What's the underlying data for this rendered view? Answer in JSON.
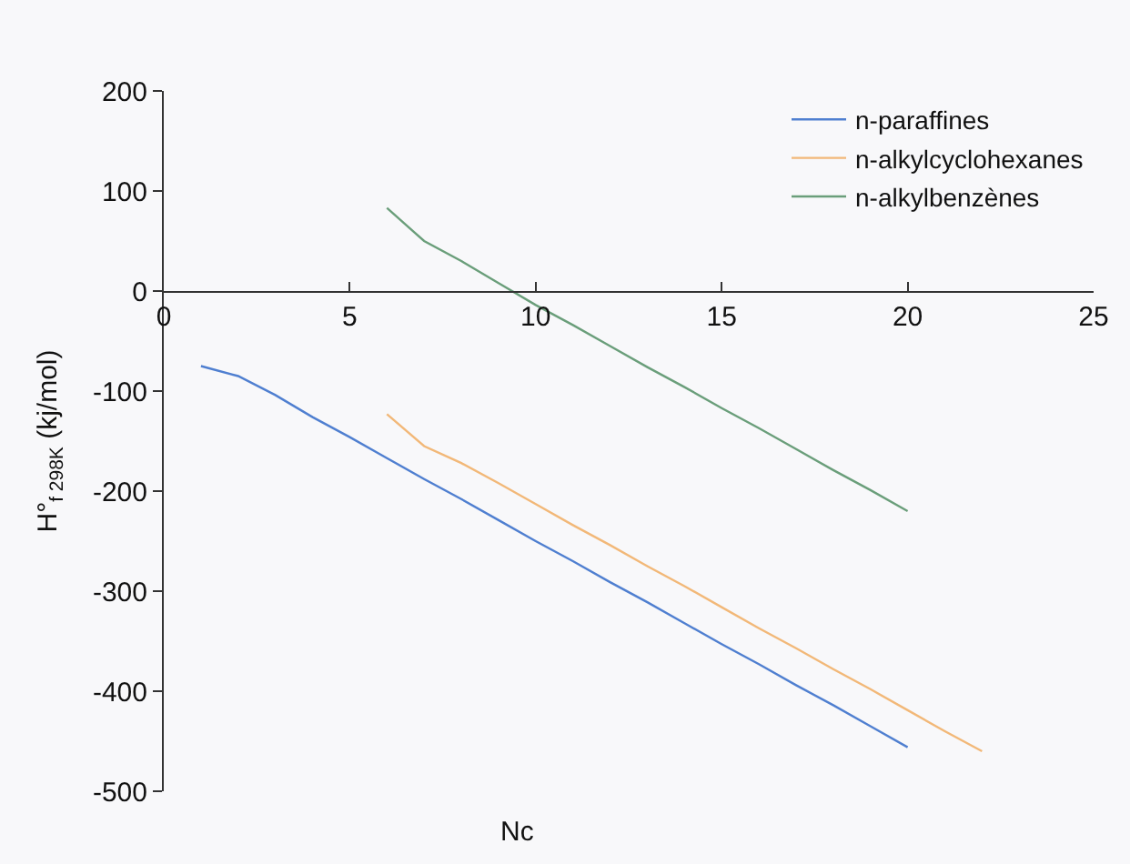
{
  "chart_data": {
    "type": "line",
    "xlabel": "Nc",
    "ylabel": "H°$_{f 298K}$ (kj/mol)",
    "xlim": [
      0,
      25
    ],
    "xticks": [
      0,
      5,
      10,
      15,
      20,
      25
    ],
    "ylim": [
      -500,
      200
    ],
    "yticks": [
      -500,
      -400,
      -300,
      -200,
      -100,
      0,
      100,
      200
    ],
    "grid": false,
    "legend": "top right",
    "marker": "none",
    "line_style": "solid",
    "series": [
      {
        "name": "n-paraffines",
        "color": "#4f7fd0",
        "x": [
          1,
          2,
          3,
          4,
          5,
          6,
          7,
          8,
          9,
          10,
          11,
          12,
          13,
          14,
          15,
          16,
          17,
          18,
          19,
          20
        ],
        "values": [
          -75,
          -85,
          -104,
          -126,
          -146,
          -167,
          -188,
          -208,
          -229,
          -250,
          -270,
          -291,
          -311,
          -332,
          -353,
          -373,
          -394,
          -414,
          -435,
          -456
        ]
      },
      {
        "name": "n-alkylcyclohexanes",
        "color": "#f2b878",
        "x": [
          6,
          7,
          8,
          9,
          10,
          11,
          12,
          13,
          14,
          15,
          16,
          17,
          18,
          19,
          20,
          21,
          22
        ],
        "values": [
          -123,
          -155,
          -172,
          -192,
          -213,
          -234,
          -254,
          -275,
          -295,
          -316,
          -337,
          -357,
          -378,
          -398,
          -419,
          -440,
          -460
        ]
      },
      {
        "name": "n-alkylbenzènes",
        "color": "#6a9e7a",
        "x": [
          6,
          7,
          8,
          9,
          10,
          11,
          12,
          13,
          14,
          15,
          16,
          17,
          18,
          19,
          20
        ],
        "values": [
          83,
          50,
          30,
          8,
          -14,
          -34,
          -55,
          -76,
          -96,
          -117,
          -137,
          -158,
          -179,
          -199,
          -220
        ]
      }
    ]
  }
}
